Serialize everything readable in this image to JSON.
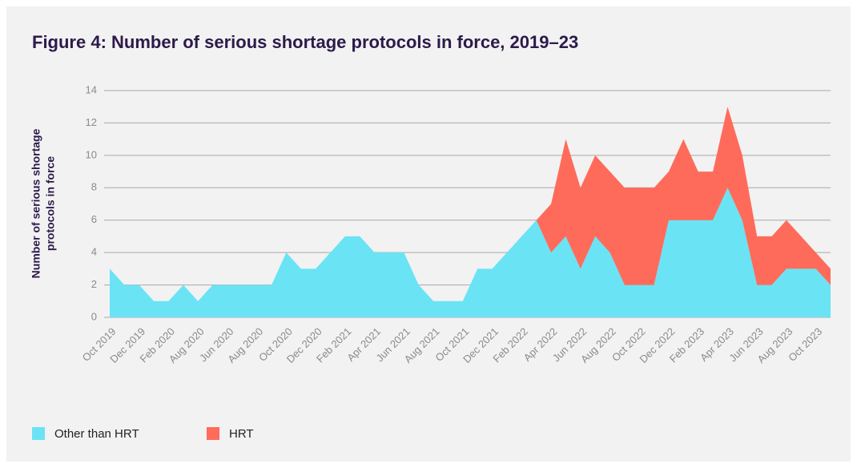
{
  "chart_data": {
    "type": "stacked-area",
    "title": "Figure 4: Number of serious shortage protocols in force, 2019–23",
    "ylabel": [
      "Number of serious shortage",
      "protocols in force"
    ],
    "categories": [
      "Oct 2019",
      null,
      "Dec 2019",
      null,
      "Feb 2020",
      null,
      "Aug 2020",
      null,
      "Jun 2020",
      null,
      "Aug 2020",
      null,
      "Oct 2020",
      null,
      "Dec 2020",
      null,
      "Feb 2021",
      null,
      "Apr 2021",
      null,
      "Jun 2021",
      null,
      "Aug 2021",
      null,
      "Oct 2021",
      null,
      "Dec 2021",
      null,
      "Feb 2022",
      null,
      "Apr 2022",
      null,
      "Jun 2022",
      null,
      "Aug 2022",
      null,
      "Oct 2022",
      null,
      "Dec 2022",
      null,
      "Feb 2023",
      null,
      "Apr 2023",
      null,
      "Jun 2023",
      null,
      "Aug 2023",
      null,
      "Oct 2023",
      null
    ],
    "series": [
      {
        "name": "Other than HRT",
        "color": "#6ae3f5",
        "values": [
          3,
          2,
          2,
          1,
          1,
          2,
          1,
          2,
          2,
          2,
          2,
          2,
          4,
          3,
          3,
          4,
          5,
          5,
          4,
          4,
          4,
          2,
          1,
          1,
          1,
          3,
          3,
          4,
          5,
          6,
          4,
          5,
          3,
          5,
          4,
          2,
          2,
          2,
          6,
          6,
          6,
          6,
          8,
          6,
          2,
          2,
          3,
          3,
          3,
          2
        ]
      },
      {
        "name": "HRT",
        "color": "#ff6b5a",
        "values": [
          0,
          0,
          0,
          0,
          0,
          0,
          0,
          0,
          0,
          0,
          0,
          0,
          0,
          0,
          0,
          0,
          0,
          0,
          0,
          0,
          0,
          0,
          0,
          0,
          0,
          0,
          0,
          0,
          0,
          0,
          3,
          6,
          5,
          5,
          5,
          6,
          6,
          6,
          3,
          5,
          3,
          3,
          5,
          4,
          3,
          3,
          3,
          2,
          1,
          1
        ]
      }
    ],
    "ylim": [
      0,
      14
    ],
    "yticks": [
      0,
      2,
      4,
      6,
      8,
      10,
      12,
      14
    ],
    "grid": true
  }
}
